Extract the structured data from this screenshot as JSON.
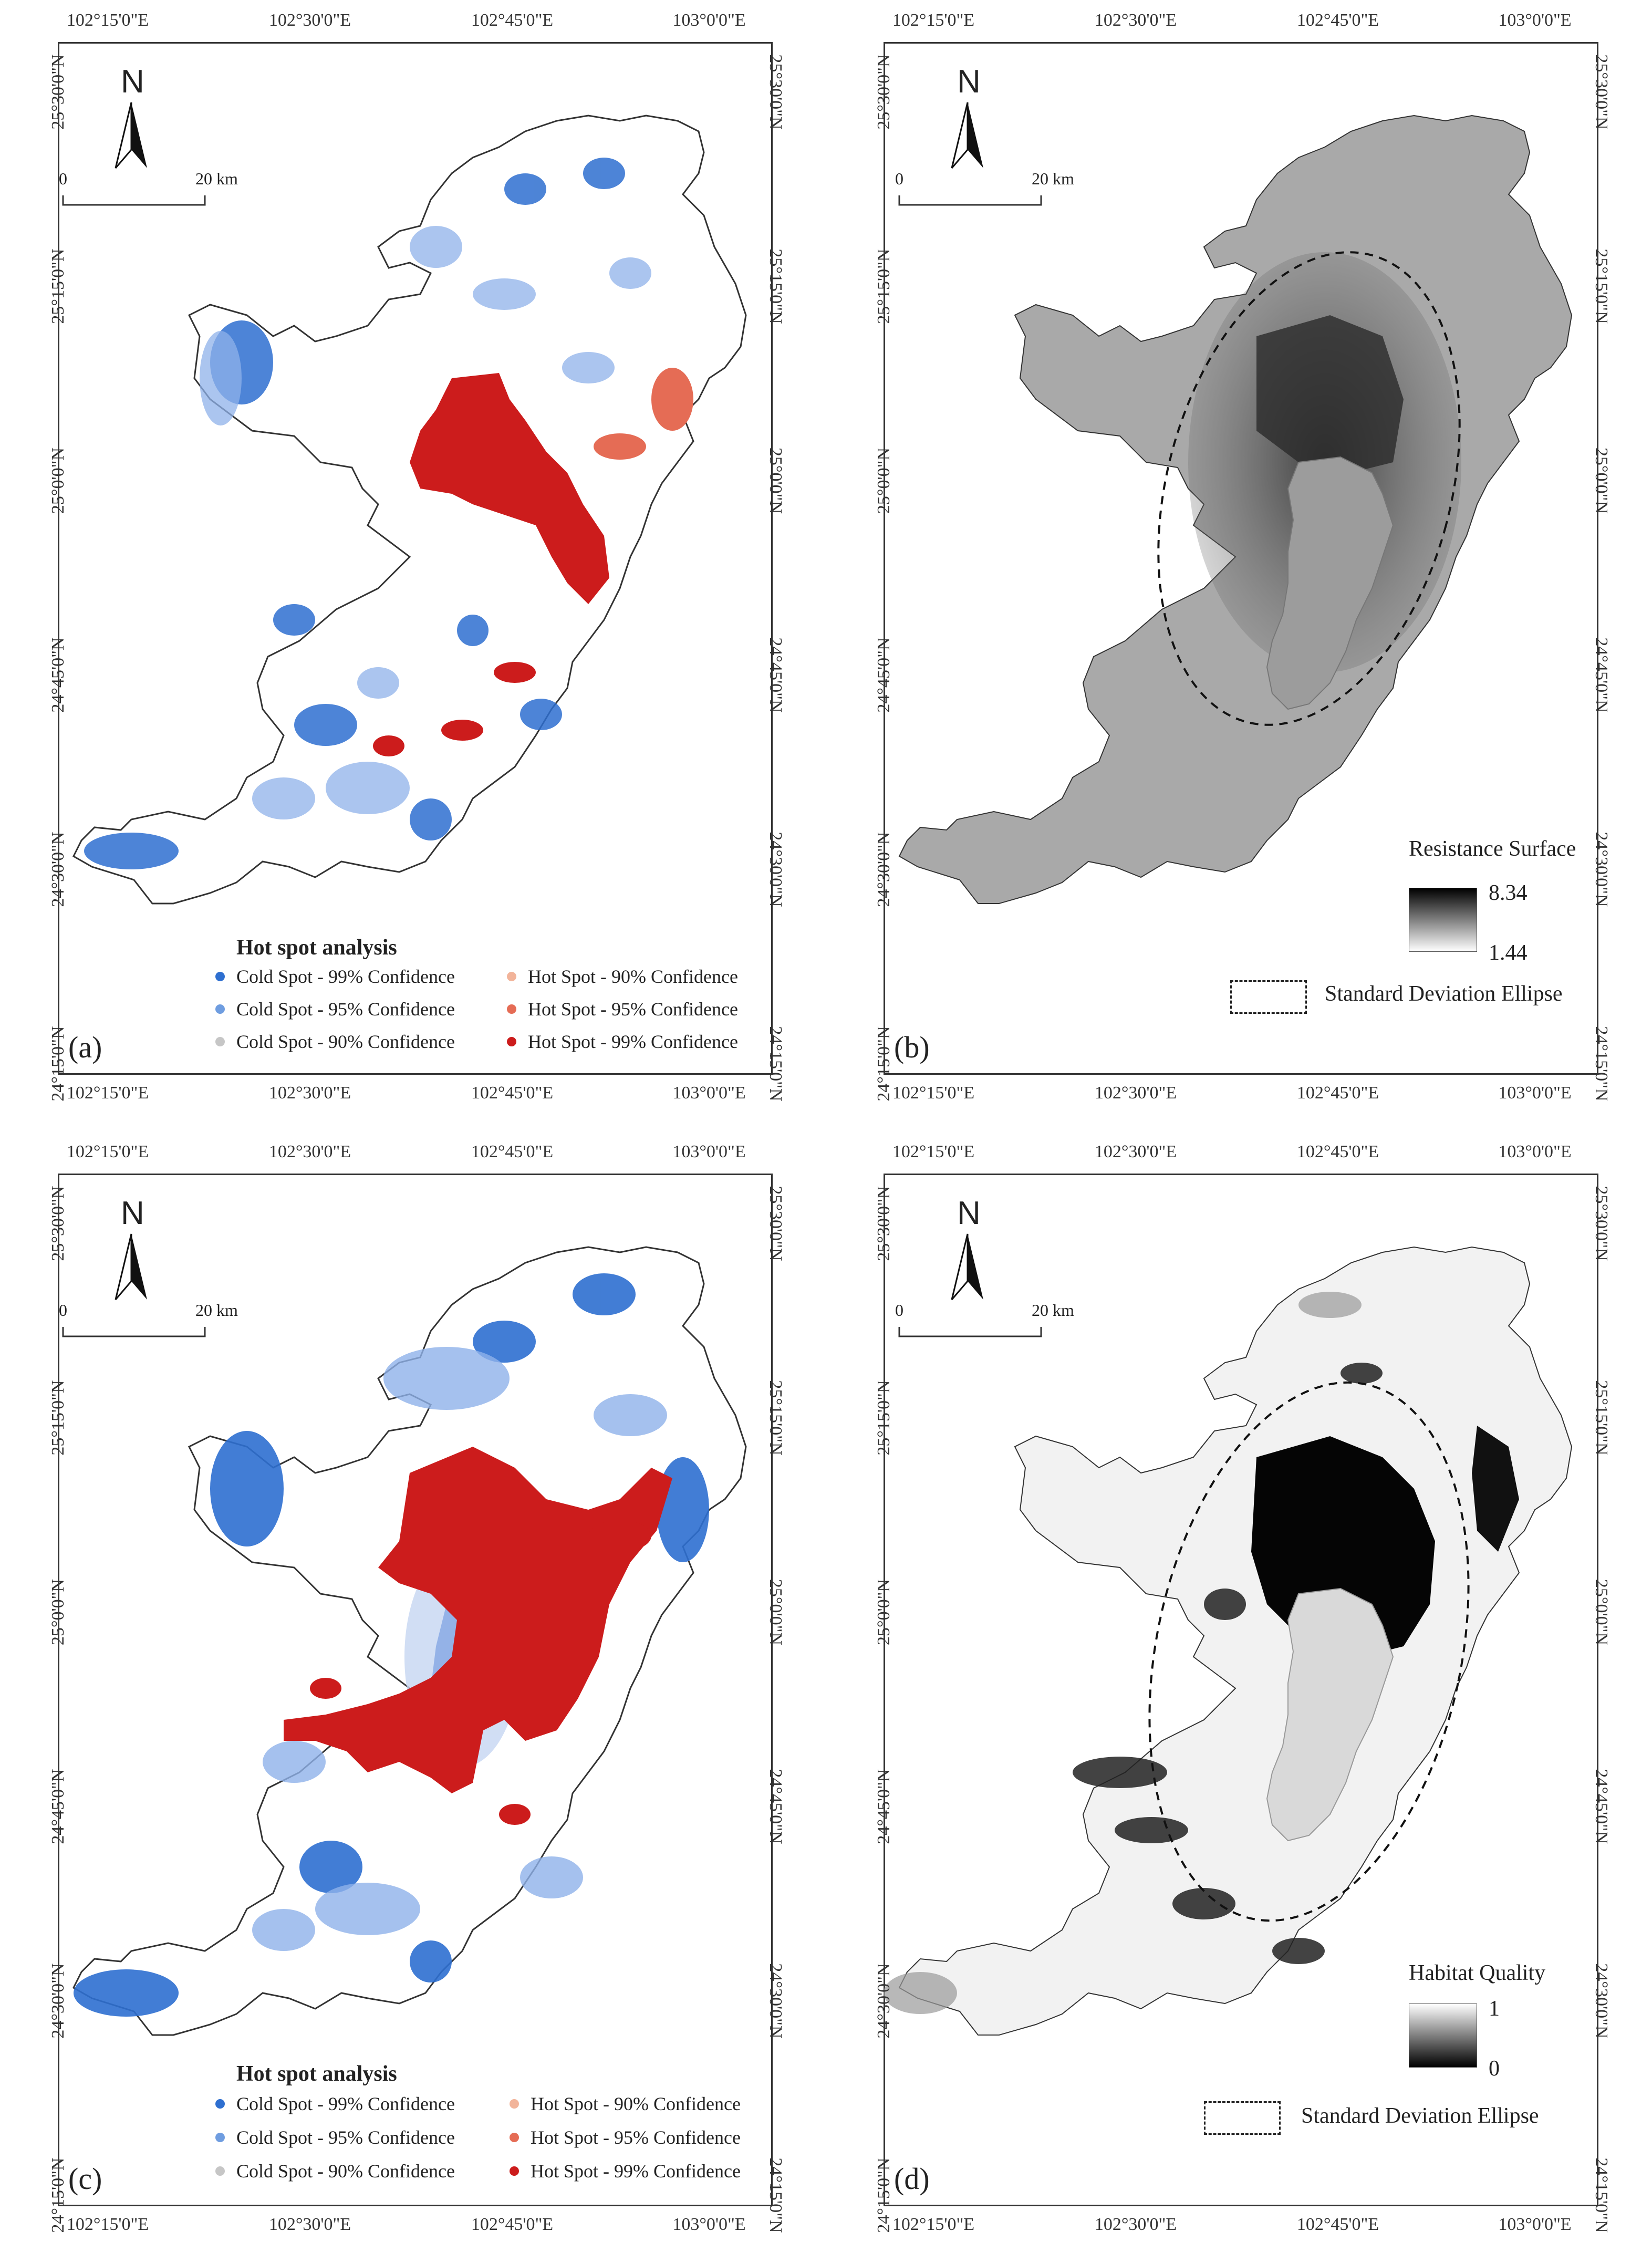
{
  "axes": {
    "lon_labels": [
      "102°15'0\"E",
      "102°30'0\"E",
      "102°45'0\"E",
      "103°0'0\"E"
    ],
    "lat_labels": [
      "25°30'0\"N",
      "25°15'0\"N",
      "25°0'0\"N",
      "24°45'0\"N",
      "24°30'0\"N",
      "24°15'0\"N"
    ]
  },
  "north_label": "N",
  "scale_bar": {
    "start": "0",
    "end": "20 km"
  },
  "hotspot_legend": {
    "title": "Hot spot analysis",
    "items": [
      {
        "label": "Cold Spot - 99% Confidence",
        "color": "#2e6fd0"
      },
      {
        "label": "Cold Spot - 95% Confidence",
        "color": "#6f9de0"
      },
      {
        "label": "Cold Spot - 90% Confidence",
        "color": "#c6c6c6"
      },
      {
        "label": "Hot Spot - 90% Confidence",
        "color": "#f2b49a"
      },
      {
        "label": "Hot Spot - 95% Confidence",
        "color": "#e56c55"
      },
      {
        "label": "Hot Spot - 99% Confidence",
        "color": "#cc1c1c"
      }
    ]
  },
  "panel_a": {
    "label": "(a)"
  },
  "panel_b": {
    "label": "(b)",
    "legend_title": "Resistance Surface",
    "max": "8.34",
    "min": "1.44",
    "ellipse_label": "Standard Deviation Ellipse"
  },
  "panel_c": {
    "label": "(c)"
  },
  "panel_d": {
    "label": "(d)",
    "legend_title": "Habitat Quality",
    "max": "1",
    "min": "0",
    "ellipse_label": "Standard Deviation Ellipse"
  },
  "colors": {
    "hot": "#cc1c1c",
    "cold": "#2e6fd0",
    "frame": "#333333"
  }
}
